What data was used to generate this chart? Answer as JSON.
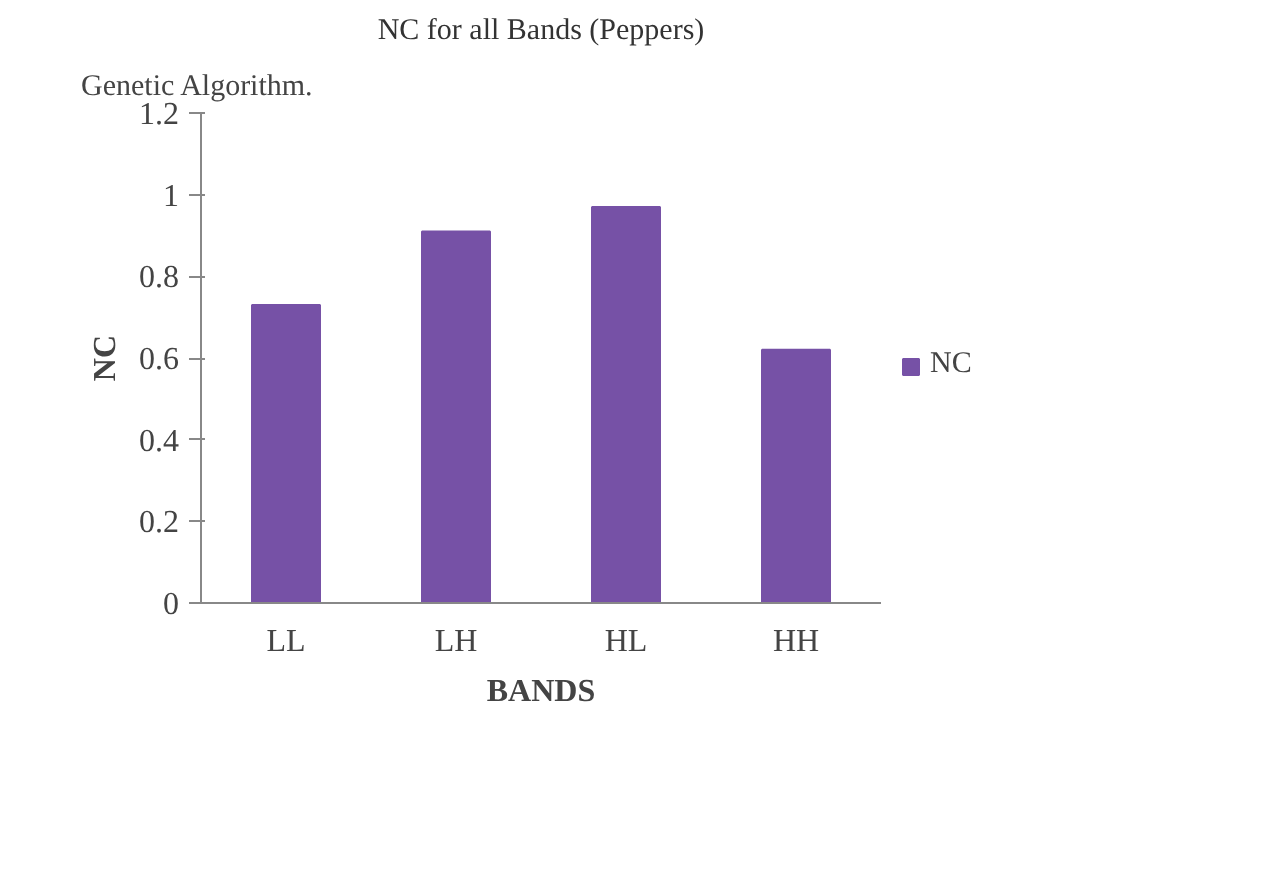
{
  "chart_data": {
    "type": "bar",
    "title": "NC for all Bands (Peppers)",
    "xlabel": "BANDS",
    "ylabel": "NC",
    "categories": [
      "LL",
      "LH",
      "HL",
      "HH"
    ],
    "series": [
      {
        "name": "NC",
        "color": "#7651a6",
        "values": [
          0.73,
          0.91,
          0.97,
          0.62
        ]
      }
    ],
    "ylim": [
      0,
      1.2
    ],
    "yticks": [
      0,
      0.2,
      0.4,
      0.6,
      0.8,
      1,
      1.2
    ],
    "grid": false,
    "legend": "right",
    "annotations": [
      "Genetic Algorithm."
    ]
  }
}
